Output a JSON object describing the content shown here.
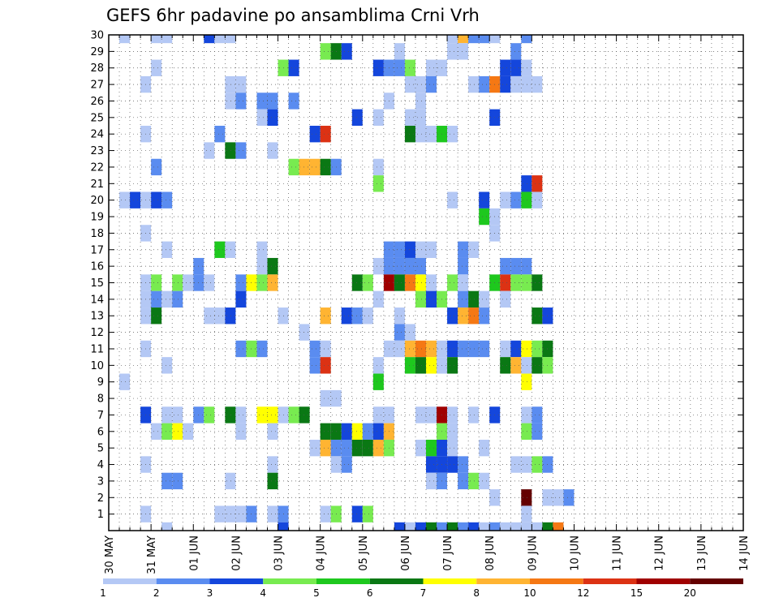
{
  "chart_data": {
    "type": "heatmap",
    "title": "GEFS 6hr padavine po ansamblima Crni Vrh",
    "xlabel": "",
    "ylabel": "",
    "x_tick_labels": [
      "30 MAY",
      "31 MAY",
      "01 JUN",
      "02 JUN",
      "03 JUN",
      "04 JUN",
      "05 JUN",
      "06 JUN",
      "07 JUN",
      "08 JUN",
      "09 JUN",
      "10 JUN",
      "11 JUN",
      "12 JUN",
      "13 JUN",
      "14 JUN"
    ],
    "xlim": [
      0,
      60
    ],
    "xstep_hours": 6,
    "y_tick_labels": [
      1,
      2,
      3,
      4,
      5,
      6,
      7,
      8,
      9,
      10,
      11,
      12,
      13,
      14,
      15,
      16,
      17,
      18,
      19,
      20,
      21,
      22,
      23,
      24,
      25,
      26,
      27,
      28,
      29,
      30
    ],
    "ylim": [
      0,
      30
    ],
    "grid": true,
    "colorbar": {
      "levels": [
        1,
        2,
        3,
        4,
        5,
        6,
        7,
        8,
        10,
        12,
        15,
        20
      ],
      "colors": [
        "#b4c8f5",
        "#5a8cf0",
        "#1446dc",
        "#78eb50",
        "#1ec81e",
        "#0a7814",
        "#ffff00",
        "#ffb432",
        "#f57814",
        "#dc3214",
        "#a00000",
        "#640000"
      ]
    },
    "note": "cells: [x_index, ensemble_member, color_level_index]",
    "cells": [
      [
        1,
        30,
        0
      ],
      [
        4,
        30,
        0
      ],
      [
        5,
        30,
        0
      ],
      [
        9,
        30,
        2
      ],
      [
        10,
        30,
        0
      ],
      [
        11,
        30,
        0
      ],
      [
        32,
        30,
        0
      ],
      [
        33,
        30,
        7
      ],
      [
        34,
        30,
        1
      ],
      [
        35,
        30,
        1
      ],
      [
        36,
        30,
        0
      ],
      [
        39,
        30,
        1
      ],
      [
        20,
        29,
        3
      ],
      [
        21,
        29,
        5
      ],
      [
        22,
        29,
        2
      ],
      [
        27,
        29,
        0
      ],
      [
        32,
        29,
        0
      ],
      [
        33,
        29,
        0
      ],
      [
        38,
        29,
        1
      ],
      [
        4,
        28,
        0
      ],
      [
        16,
        28,
        3
      ],
      [
        17,
        28,
        2
      ],
      [
        25,
        28,
        2
      ],
      [
        26,
        28,
        1
      ],
      [
        27,
        28,
        1
      ],
      [
        28,
        28,
        3
      ],
      [
        30,
        28,
        0
      ],
      [
        31,
        28,
        0
      ],
      [
        37,
        28,
        2
      ],
      [
        38,
        28,
        2
      ],
      [
        39,
        28,
        0
      ],
      [
        3,
        27,
        0
      ],
      [
        11,
        27,
        0
      ],
      [
        12,
        27,
        0
      ],
      [
        28,
        27,
        0
      ],
      [
        29,
        27,
        0
      ],
      [
        30,
        27,
        1
      ],
      [
        34,
        27,
        0
      ],
      [
        35,
        27,
        1
      ],
      [
        36,
        27,
        8
      ],
      [
        37,
        27,
        2
      ],
      [
        38,
        27,
        0
      ],
      [
        39,
        27,
        0
      ],
      [
        40,
        27,
        0
      ],
      [
        11,
        26,
        0
      ],
      [
        12,
        26,
        1
      ],
      [
        14,
        26,
        1
      ],
      [
        15,
        26,
        1
      ],
      [
        17,
        26,
        1
      ],
      [
        26,
        26,
        0
      ],
      [
        29,
        26,
        0
      ],
      [
        14,
        25,
        0
      ],
      [
        15,
        25,
        2
      ],
      [
        23,
        25,
        2
      ],
      [
        25,
        25,
        0
      ],
      [
        28,
        25,
        0
      ],
      [
        29,
        25,
        0
      ],
      [
        36,
        25,
        2
      ],
      [
        3,
        24,
        0
      ],
      [
        10,
        24,
        1
      ],
      [
        19,
        24,
        2
      ],
      [
        20,
        24,
        9
      ],
      [
        28,
        24,
        5
      ],
      [
        29,
        24,
        0
      ],
      [
        30,
        24,
        0
      ],
      [
        31,
        24,
        4
      ],
      [
        32,
        24,
        0
      ],
      [
        9,
        23,
        0
      ],
      [
        11,
        23,
        5
      ],
      [
        12,
        23,
        1
      ],
      [
        15,
        23,
        0
      ],
      [
        4,
        22,
        1
      ],
      [
        17,
        22,
        3
      ],
      [
        18,
        22,
        7
      ],
      [
        19,
        22,
        7
      ],
      [
        20,
        22,
        5
      ],
      [
        21,
        22,
        1
      ],
      [
        25,
        22,
        0
      ],
      [
        25,
        21,
        3
      ],
      [
        39,
        21,
        2
      ],
      [
        40,
        21,
        9
      ],
      [
        1,
        20,
        0
      ],
      [
        2,
        20,
        2
      ],
      [
        3,
        20,
        0
      ],
      [
        4,
        20,
        2
      ],
      [
        5,
        20,
        1
      ],
      [
        32,
        20,
        0
      ],
      [
        35,
        20,
        2
      ],
      [
        37,
        20,
        0
      ],
      [
        38,
        20,
        1
      ],
      [
        39,
        20,
        4
      ],
      [
        40,
        20,
        0
      ],
      [
        35,
        19,
        4
      ],
      [
        36,
        19,
        0
      ],
      [
        3,
        18,
        0
      ],
      [
        36,
        18,
        0
      ],
      [
        5,
        17,
        0
      ],
      [
        10,
        17,
        4
      ],
      [
        11,
        17,
        0
      ],
      [
        14,
        17,
        0
      ],
      [
        26,
        17,
        1
      ],
      [
        27,
        17,
        1
      ],
      [
        28,
        17,
        2
      ],
      [
        29,
        17,
        0
      ],
      [
        30,
        17,
        0
      ],
      [
        33,
        17,
        1
      ],
      [
        34,
        17,
        0
      ],
      [
        8,
        16,
        1
      ],
      [
        14,
        16,
        0
      ],
      [
        15,
        16,
        5
      ],
      [
        25,
        16,
        0
      ],
      [
        26,
        16,
        1
      ],
      [
        27,
        16,
        1
      ],
      [
        28,
        16,
        1
      ],
      [
        29,
        16,
        1
      ],
      [
        33,
        16,
        1
      ],
      [
        37,
        16,
        1
      ],
      [
        38,
        16,
        1
      ],
      [
        39,
        16,
        1
      ],
      [
        3,
        15,
        0
      ],
      [
        4,
        15,
        3
      ],
      [
        6,
        15,
        3
      ],
      [
        7,
        15,
        0
      ],
      [
        8,
        15,
        1
      ],
      [
        9,
        15,
        0
      ],
      [
        12,
        15,
        1
      ],
      [
        13,
        15,
        6
      ],
      [
        14,
        15,
        3
      ],
      [
        15,
        15,
        7
      ],
      [
        23,
        15,
        5
      ],
      [
        24,
        15,
        3
      ],
      [
        26,
        15,
        10
      ],
      [
        27,
        15,
        5
      ],
      [
        28,
        15,
        8
      ],
      [
        29,
        15,
        6
      ],
      [
        30,
        15,
        0
      ],
      [
        32,
        15,
        3
      ],
      [
        33,
        15,
        0
      ],
      [
        36,
        15,
        4
      ],
      [
        37,
        15,
        9
      ],
      [
        38,
        15,
        3
      ],
      [
        39,
        15,
        3
      ],
      [
        40,
        15,
        5
      ],
      [
        3,
        14,
        0
      ],
      [
        4,
        14,
        1
      ],
      [
        5,
        14,
        0
      ],
      [
        6,
        14,
        1
      ],
      [
        12,
        14,
        2
      ],
      [
        25,
        14,
        0
      ],
      [
        29,
        14,
        3
      ],
      [
        30,
        14,
        2
      ],
      [
        31,
        14,
        3
      ],
      [
        33,
        14,
        1
      ],
      [
        34,
        14,
        5
      ],
      [
        35,
        14,
        0
      ],
      [
        37,
        14,
        0
      ],
      [
        3,
        13,
        0
      ],
      [
        4,
        13,
        5
      ],
      [
        9,
        13,
        0
      ],
      [
        10,
        13,
        0
      ],
      [
        11,
        13,
        2
      ],
      [
        16,
        13,
        0
      ],
      [
        20,
        13,
        7
      ],
      [
        22,
        13,
        2
      ],
      [
        23,
        13,
        1
      ],
      [
        24,
        13,
        0
      ],
      [
        27,
        13,
        0
      ],
      [
        32,
        13,
        2
      ],
      [
        33,
        13,
        7
      ],
      [
        34,
        13,
        8
      ],
      [
        35,
        13,
        1
      ],
      [
        40,
        13,
        5
      ],
      [
        41,
        13,
        2
      ],
      [
        18,
        12,
        0
      ],
      [
        27,
        12,
        1
      ],
      [
        28,
        12,
        0
      ],
      [
        3,
        11,
        0
      ],
      [
        12,
        11,
        1
      ],
      [
        13,
        11,
        3
      ],
      [
        14,
        11,
        1
      ],
      [
        19,
        11,
        1
      ],
      [
        20,
        11,
        0
      ],
      [
        26,
        11,
        0
      ],
      [
        27,
        11,
        0
      ],
      [
        28,
        11,
        7
      ],
      [
        29,
        11,
        8
      ],
      [
        30,
        11,
        7
      ],
      [
        31,
        11,
        0
      ],
      [
        32,
        11,
        2
      ],
      [
        33,
        11,
        1
      ],
      [
        34,
        11,
        1
      ],
      [
        35,
        11,
        1
      ],
      [
        37,
        11,
        0
      ],
      [
        38,
        11,
        2
      ],
      [
        39,
        11,
        6
      ],
      [
        40,
        11,
        3
      ],
      [
        41,
        11,
        5
      ],
      [
        5,
        10,
        0
      ],
      [
        19,
        10,
        1
      ],
      [
        20,
        10,
        9
      ],
      [
        25,
        10,
        0
      ],
      [
        28,
        10,
        4
      ],
      [
        29,
        10,
        5
      ],
      [
        30,
        10,
        6
      ],
      [
        31,
        10,
        0
      ],
      [
        32,
        10,
        5
      ],
      [
        37,
        10,
        5
      ],
      [
        38,
        10,
        7
      ],
      [
        39,
        10,
        0
      ],
      [
        40,
        10,
        5
      ],
      [
        41,
        10,
        3
      ],
      [
        1,
        9,
        0
      ],
      [
        25,
        9,
        4
      ],
      [
        39,
        9,
        6
      ],
      [
        20,
        8,
        0
      ],
      [
        21,
        8,
        0
      ],
      [
        3,
        7,
        2
      ],
      [
        5,
        7,
        0
      ],
      [
        6,
        7,
        0
      ],
      [
        8,
        7,
        1
      ],
      [
        9,
        7,
        3
      ],
      [
        11,
        7,
        5
      ],
      [
        12,
        7,
        0
      ],
      [
        14,
        7,
        6
      ],
      [
        15,
        7,
        6
      ],
      [
        16,
        7,
        0
      ],
      [
        17,
        7,
        3
      ],
      [
        18,
        7,
        5
      ],
      [
        25,
        7,
        0
      ],
      [
        26,
        7,
        0
      ],
      [
        29,
        7,
        0
      ],
      [
        30,
        7,
        0
      ],
      [
        31,
        7,
        10
      ],
      [
        32,
        7,
        0
      ],
      [
        34,
        7,
        0
      ],
      [
        36,
        7,
        2
      ],
      [
        39,
        7,
        0
      ],
      [
        40,
        7,
        1
      ],
      [
        4,
        6,
        0
      ],
      [
        5,
        6,
        3
      ],
      [
        6,
        6,
        6
      ],
      [
        7,
        6,
        0
      ],
      [
        12,
        6,
        0
      ],
      [
        15,
        6,
        0
      ],
      [
        20,
        6,
        5
      ],
      [
        21,
        6,
        5
      ],
      [
        22,
        6,
        2
      ],
      [
        23,
        6,
        6
      ],
      [
        24,
        6,
        1
      ],
      [
        25,
        6,
        2
      ],
      [
        26,
        6,
        7
      ],
      [
        31,
        6,
        3
      ],
      [
        32,
        6,
        0
      ],
      [
        39,
        6,
        3
      ],
      [
        40,
        6,
        1
      ],
      [
        19,
        5,
        0
      ],
      [
        20,
        5,
        7
      ],
      [
        21,
        5,
        1
      ],
      [
        22,
        5,
        1
      ],
      [
        23,
        5,
        5
      ],
      [
        24,
        5,
        5
      ],
      [
        25,
        5,
        7
      ],
      [
        26,
        5,
        3
      ],
      [
        29,
        5,
        0
      ],
      [
        30,
        5,
        4
      ],
      [
        31,
        5,
        2
      ],
      [
        32,
        5,
        0
      ],
      [
        35,
        5,
        0
      ],
      [
        3,
        4,
        0
      ],
      [
        15,
        4,
        0
      ],
      [
        21,
        4,
        0
      ],
      [
        22,
        4,
        1
      ],
      [
        30,
        4,
        2
      ],
      [
        31,
        4,
        2
      ],
      [
        32,
        4,
        2
      ],
      [
        33,
        4,
        1
      ],
      [
        38,
        4,
        0
      ],
      [
        39,
        4,
        0
      ],
      [
        40,
        4,
        3
      ],
      [
        41,
        4,
        1
      ],
      [
        5,
        3,
        1
      ],
      [
        6,
        3,
        1
      ],
      [
        11,
        3,
        0
      ],
      [
        15,
        3,
        5
      ],
      [
        30,
        3,
        0
      ],
      [
        31,
        3,
        1
      ],
      [
        33,
        3,
        1
      ],
      [
        34,
        3,
        3
      ],
      [
        35,
        3,
        0
      ],
      [
        36,
        2,
        0
      ],
      [
        39,
        2,
        11
      ],
      [
        41,
        2,
        0
      ],
      [
        42,
        2,
        0
      ],
      [
        43,
        2,
        1
      ],
      [
        3,
        1,
        0
      ],
      [
        10,
        1,
        0
      ],
      [
        11,
        1,
        0
      ],
      [
        12,
        1,
        0
      ],
      [
        13,
        1,
        1
      ],
      [
        15,
        1,
        0
      ],
      [
        16,
        1,
        1
      ],
      [
        20,
        1,
        0
      ],
      [
        21,
        1,
        3
      ],
      [
        23,
        1,
        2
      ],
      [
        24,
        1,
        3
      ],
      [
        39,
        1,
        0
      ],
      [
        5,
        0,
        0
      ],
      [
        16,
        0,
        2
      ],
      [
        27,
        0,
        2
      ],
      [
        28,
        0,
        0
      ],
      [
        29,
        0,
        2
      ],
      [
        30,
        0,
        5
      ],
      [
        31,
        0,
        1
      ],
      [
        32,
        0,
        5
      ],
      [
        33,
        0,
        1
      ],
      [
        34,
        0,
        2
      ],
      [
        35,
        0,
        0
      ],
      [
        36,
        0,
        1
      ],
      [
        37,
        0,
        0
      ],
      [
        38,
        0,
        0
      ],
      [
        39,
        0,
        0
      ],
      [
        40,
        0,
        0
      ],
      [
        41,
        0,
        5
      ],
      [
        42,
        0,
        8
      ]
    ]
  }
}
